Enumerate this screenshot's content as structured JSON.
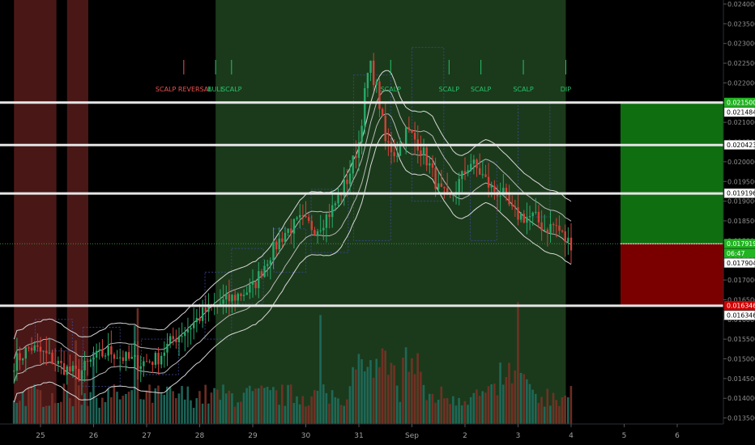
{
  "chart_data": {
    "type": "candlestick",
    "title": "",
    "xlabel": "",
    "ylabel": "",
    "ylim": [
      0.01325,
      0.024
    ],
    "grid": false,
    "x_tick_labels": [
      "25",
      "26",
      "27",
      "28",
      "29",
      "30",
      "31",
      "Sep",
      "2",
      "3",
      "4",
      "5",
      "6"
    ],
    "y_tick_labels": [
      "0.024000",
      "0.023500",
      "0.023000",
      "0.022500",
      "0.022000",
      "0.021500",
      "0.021000",
      "0.020500",
      "0.020000",
      "0.019500",
      "0.019000",
      "0.018500",
      "0.018000",
      "0.017500",
      "0.017000",
      "0.016500",
      "0.016000",
      "0.015500",
      "0.015000",
      "0.014500",
      "0.014000",
      "0.013500"
    ],
    "y_tick_values": [
      0.024,
      0.0235,
      0.023,
      0.0225,
      0.022,
      0.0215,
      0.021,
      0.0205,
      0.02,
      0.0195,
      0.019,
      0.0185,
      0.018,
      0.0175,
      0.017,
      0.0165,
      0.016,
      0.0155,
      0.015,
      0.0145,
      0.014,
      0.0135
    ],
    "horizontal_levels": [
      0.0215,
      0.020423,
      0.019196,
      0.016346
    ],
    "price_labels": [
      {
        "text": "0.021500",
        "value": 0.0215,
        "style": "green"
      },
      {
        "text": "0.021484",
        "value": 0.021484,
        "style": "white"
      },
      {
        "text": "0.020423",
        "value": 0.020423,
        "style": "white"
      },
      {
        "text": "0.019196",
        "value": 0.019196,
        "style": "white"
      },
      {
        "text": "0.017919",
        "value": 0.017919,
        "style": "green"
      },
      {
        "text": "06:47",
        "value": 0.017919,
        "style": "green-sub"
      },
      {
        "text": "0.017904",
        "value": 0.017904,
        "style": "white"
      },
      {
        "text": "0.016346",
        "value": 0.016346,
        "style": "red"
      },
      {
        "text": "0.016346",
        "value": 0.016346,
        "style": "white"
      }
    ],
    "current_price": 0.017919,
    "signals": [
      {
        "text": "SCALP REVERSAL",
        "x": 2.7,
        "color": "red"
      },
      {
        "text": "BULL",
        "x": 3.3,
        "color": "green"
      },
      {
        "text": "SCALP",
        "x": 3.6,
        "color": "green"
      },
      {
        "text": "SCALP",
        "x": 6.6,
        "color": "green"
      },
      {
        "text": "SCALP",
        "x": 7.7,
        "color": "green"
      },
      {
        "text": "SCALP",
        "x": 8.3,
        "color": "green"
      },
      {
        "text": "SCALP",
        "x": 9.1,
        "color": "green"
      },
      {
        "text": "DIP",
        "x": 9.9,
        "color": "green"
      }
    ],
    "regions": [
      {
        "from": -0.5,
        "to": 0.3,
        "type": "bear"
      },
      {
        "from": 0.5,
        "to": 0.9,
        "type": "bear"
      },
      {
        "from": 3.3,
        "to": 9.9,
        "type": "bull"
      }
    ],
    "target_zone": {
      "upper": 0.0215,
      "entry": 0.017919,
      "stop": 0.016346
    },
    "close_path": [
      [
        -0.5,
        0.0149
      ],
      [
        -0.2,
        0.0153
      ],
      [
        0.1,
        0.0151
      ],
      [
        0.4,
        0.0148
      ],
      [
        0.7,
        0.0146
      ],
      [
        1.0,
        0.015
      ],
      [
        1.3,
        0.0152
      ],
      [
        1.6,
        0.015
      ],
      [
        1.9,
        0.0149
      ],
      [
        2.2,
        0.015
      ],
      [
        2.5,
        0.0155
      ],
      [
        2.8,
        0.0158
      ],
      [
        3.1,
        0.0162
      ],
      [
        3.4,
        0.0164
      ],
      [
        3.7,
        0.0166
      ],
      [
        4.0,
        0.0168
      ],
      [
        4.3,
        0.0176
      ],
      [
        4.6,
        0.0182
      ],
      [
        4.9,
        0.0185
      ],
      [
        5.2,
        0.0183
      ],
      [
        5.5,
        0.0188
      ],
      [
        5.8,
        0.0196
      ],
      [
        6.0,
        0.0205
      ],
      [
        6.1,
        0.0216
      ],
      [
        6.2,
        0.0225
      ],
      [
        6.35,
        0.0218
      ],
      [
        6.5,
        0.0205
      ],
      [
        6.7,
        0.0202
      ],
      [
        6.9,
        0.0208
      ],
      [
        7.1,
        0.0205
      ],
      [
        7.3,
        0.02
      ],
      [
        7.5,
        0.0193
      ],
      [
        7.7,
        0.019
      ],
      [
        7.9,
        0.0195
      ],
      [
        8.1,
        0.02
      ],
      [
        8.3,
        0.0197
      ],
      [
        8.5,
        0.0193
      ],
      [
        8.7,
        0.0192
      ],
      [
        8.9,
        0.0187
      ],
      [
        9.1,
        0.0186
      ],
      [
        9.3,
        0.0186
      ],
      [
        9.5,
        0.0183
      ],
      [
        9.7,
        0.0184
      ],
      [
        9.9,
        0.018
      ],
      [
        10.05,
        0.01791
      ]
    ]
  }
}
